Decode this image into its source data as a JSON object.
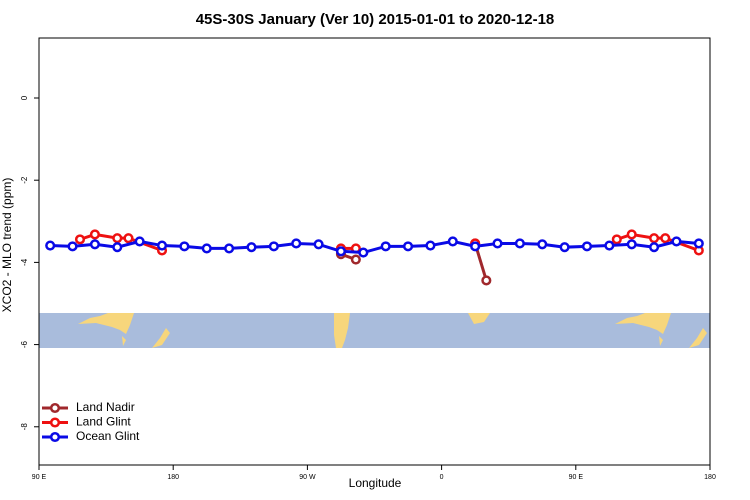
{
  "chart_data": {
    "type": "line",
    "title": "45S-30S January (Ver 10)   2015-01-01 to 2020-12-18",
    "x_label": "Longitude",
    "y_label": "XCO2 - MLO trend (ppm)",
    "xlim": [
      90,
      540
    ],
    "xticks": [
      {
        "value": 90,
        "label": "90 E"
      },
      180,
      {
        "value": 270,
        "label": "90 W"
      },
      {
        "value": 360,
        "label": "0"
      },
      {
        "value": 450,
        "label": "90 E"
      },
      {
        "value": 540,
        "label": "180"
      }
    ],
    "ylim": [
      -8.93,
      1.46
    ],
    "yticks": [
      0,
      -2,
      -4,
      -6,
      -8
    ],
    "legend": "bottom-left",
    "series": [
      {
        "name": "Land Nadir",
        "color": "#a0282c",
        "x": [
          292.5,
          302.5,
          null,
          382.5,
          390
        ],
        "values": [
          -3.8,
          -3.93,
          null,
          -3.54,
          -4.44
        ]
      },
      {
        "name": "Land Glint",
        "color": "#ee1111",
        "x": [
          117.5,
          127.5,
          142.5,
          150,
          172.5,
          null,
          292.5,
          302.5,
          null,
          382.5,
          null,
          477.5,
          487.5,
          502.5,
          510,
          532.5
        ],
        "values": [
          -3.44,
          -3.32,
          -3.41,
          -3.41,
          -3.71,
          null,
          -3.66,
          -3.66,
          null,
          -3.54,
          null,
          -3.44,
          -3.32,
          -3.41,
          -3.41,
          -3.71
        ]
      },
      {
        "name": "Ocean Glint",
        "color": "#0a0ae6",
        "x": [
          97.5,
          112.5,
          127.5,
          142.5,
          157.5,
          172.5,
          187.5,
          202.5,
          217.5,
          232.5,
          247.5,
          262.5,
          277.5,
          292.5,
          307.5,
          322.5,
          337.5,
          352.5,
          367.5,
          382.5,
          397.5,
          412.5,
          427.5,
          442.5,
          457.5,
          472.5,
          487.5,
          502.5,
          517.5,
          532.5
        ],
        "values": [
          -3.59,
          -3.61,
          -3.56,
          -3.63,
          -3.49,
          -3.59,
          -3.61,
          -3.66,
          -3.66,
          -3.63,
          -3.61,
          -3.54,
          -3.56,
          -3.73,
          -3.76,
          -3.61,
          -3.61,
          -3.59,
          -3.49,
          -3.61,
          -3.54,
          -3.54,
          -3.56,
          -3.63,
          -3.61,
          -3.59,
          -3.56,
          -3.63,
          -3.49,
          -3.54
        ]
      }
    ]
  }
}
